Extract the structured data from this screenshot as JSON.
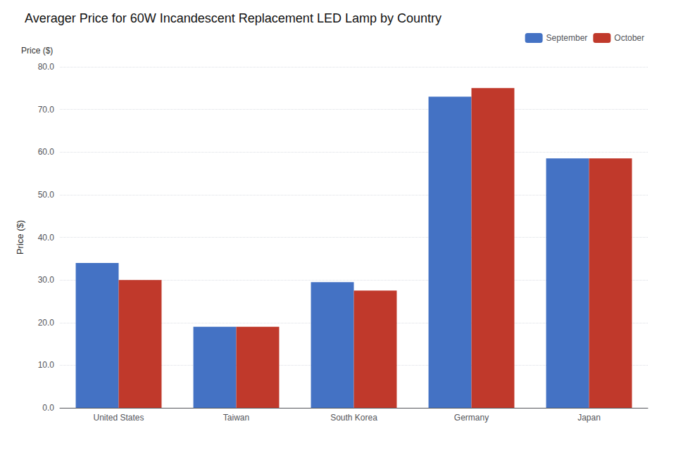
{
  "chart_data": {
    "type": "bar",
    "title": "Averager Price for 60W Incandescent Replacement LED Lamp by Country",
    "ylabel": "Price ($)",
    "annotations": [
      "Price ($)"
    ],
    "categories": [
      "United States",
      "Taiwan",
      "South Korea",
      "Germany",
      "Japan"
    ],
    "series": [
      {
        "name": "September",
        "color": "#4472C4",
        "values": [
          34.0,
          19.0,
          29.5,
          73.0,
          58.5
        ]
      },
      {
        "name": "October",
        "color": "#C0392B",
        "values": [
          30.0,
          19.0,
          27.5,
          75.0,
          58.5
        ]
      }
    ],
    "ylim": [
      0,
      80
    ],
    "yticks": [
      {
        "value": 0,
        "label": "0.0"
      },
      {
        "value": 10,
        "label": "10.0"
      },
      {
        "value": 20,
        "label": "20.0"
      },
      {
        "value": 30,
        "label": "30.0"
      },
      {
        "value": 40,
        "label": "40.0"
      },
      {
        "value": 50,
        "label": "50.0"
      },
      {
        "value": 60,
        "label": "60.0"
      },
      {
        "value": 70,
        "label": "70.0"
      },
      {
        "value": 80,
        "label": "80.0"
      }
    ],
    "grid": true,
    "legend": "upper right"
  }
}
